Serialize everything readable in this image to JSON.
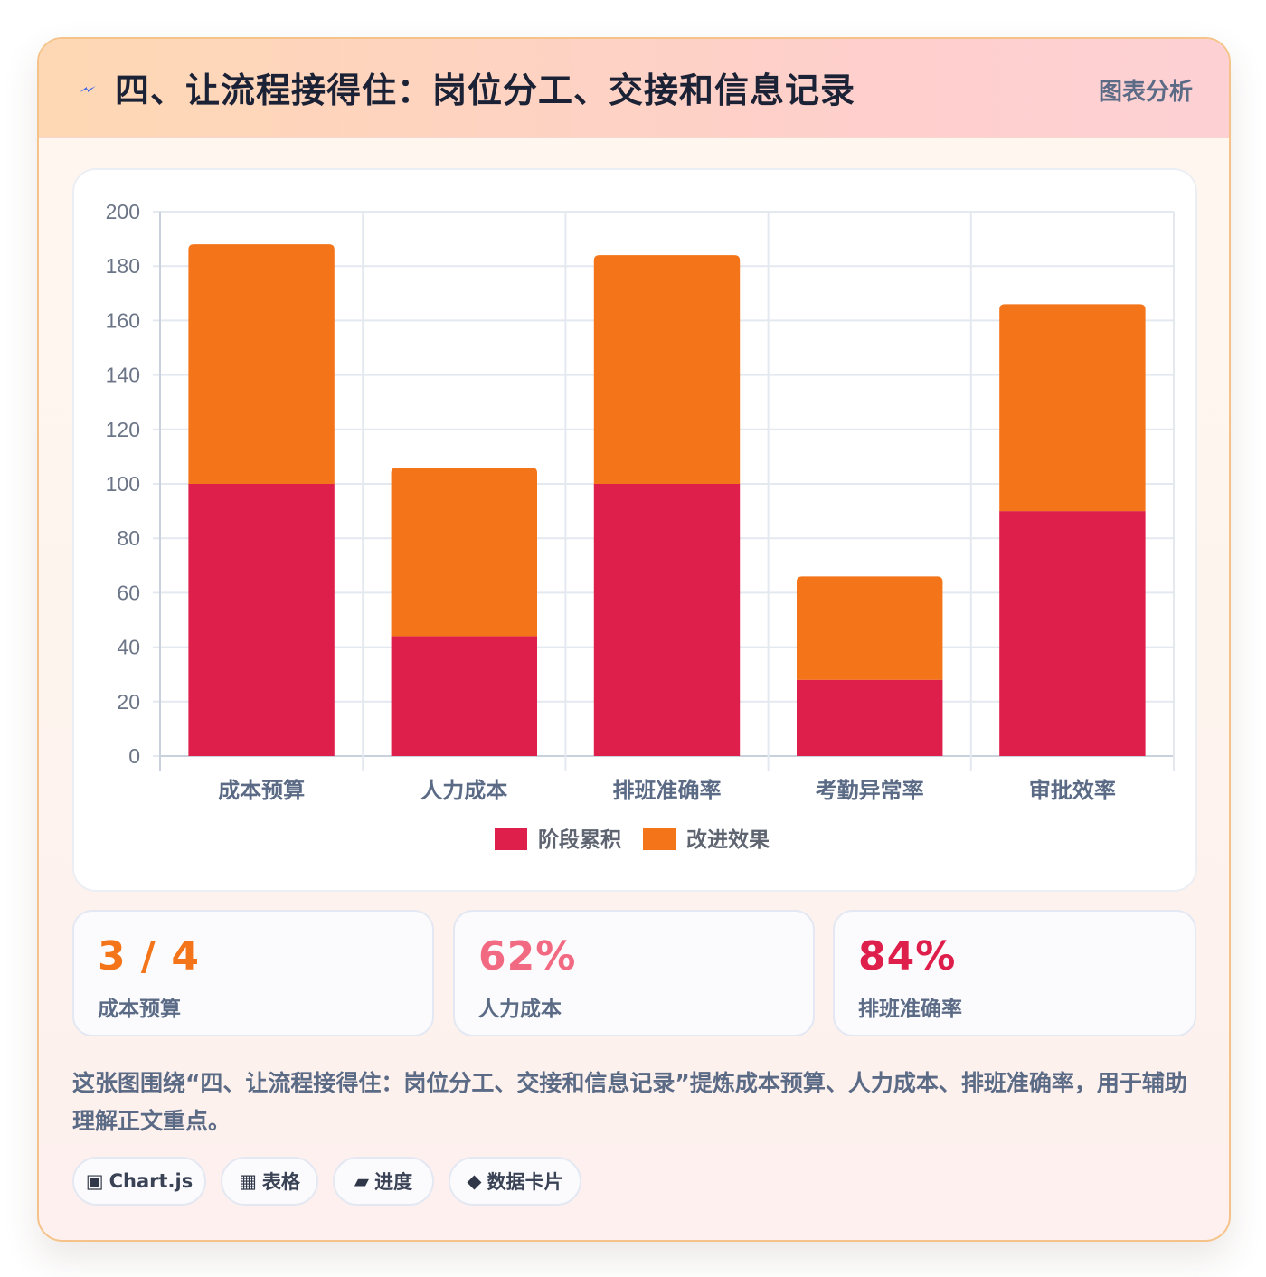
{
  "header": {
    "title": "四、让流程接得住：岗位分工、交接和信息记录",
    "tag": "图表分析",
    "icon": "lightning-bolt-icon"
  },
  "colors": {
    "series_1": "#df1f4b",
    "series_2": "#f47519",
    "stat_1": "#f47519",
    "stat_2": "#f26a82",
    "stat_3": "#df1f4b"
  },
  "chart_data": {
    "type": "bar",
    "stacked": true,
    "categories": [
      "成本预算",
      "人力成本",
      "排班准确率",
      "考勤异常率",
      "审批效率"
    ],
    "series": [
      {
        "name": "阶段累积",
        "values": [
          100,
          44,
          100,
          28,
          90
        ]
      },
      {
        "name": "改进效果",
        "values": [
          88,
          62,
          84,
          38,
          76
        ]
      }
    ],
    "ylim": [
      0,
      200
    ],
    "yticks": [
      0,
      20,
      40,
      60,
      80,
      100,
      120,
      140,
      160,
      180,
      200
    ],
    "grid": true,
    "legend": "bottom"
  },
  "stats": [
    {
      "value": "3 / 4",
      "label": "成本预算"
    },
    {
      "value": "62%",
      "label": "人力成本"
    },
    {
      "value": "84%",
      "label": "排班准确率"
    }
  ],
  "description": "这张图围绕“四、让流程接得住：岗位分工、交接和信息记录”提炼成本预算、人力成本、排班准确率，用于辅助理解正文重点。",
  "chips": [
    {
      "icon": "chart-box-icon",
      "glyph": "▣",
      "label": "Chart.js"
    },
    {
      "icon": "table-icon",
      "glyph": "▦",
      "label": "表格"
    },
    {
      "icon": "progress-icon",
      "glyph": "▰",
      "label": "进度"
    },
    {
      "icon": "diamond-icon",
      "glyph": "◆",
      "label": "数据卡片"
    }
  ]
}
